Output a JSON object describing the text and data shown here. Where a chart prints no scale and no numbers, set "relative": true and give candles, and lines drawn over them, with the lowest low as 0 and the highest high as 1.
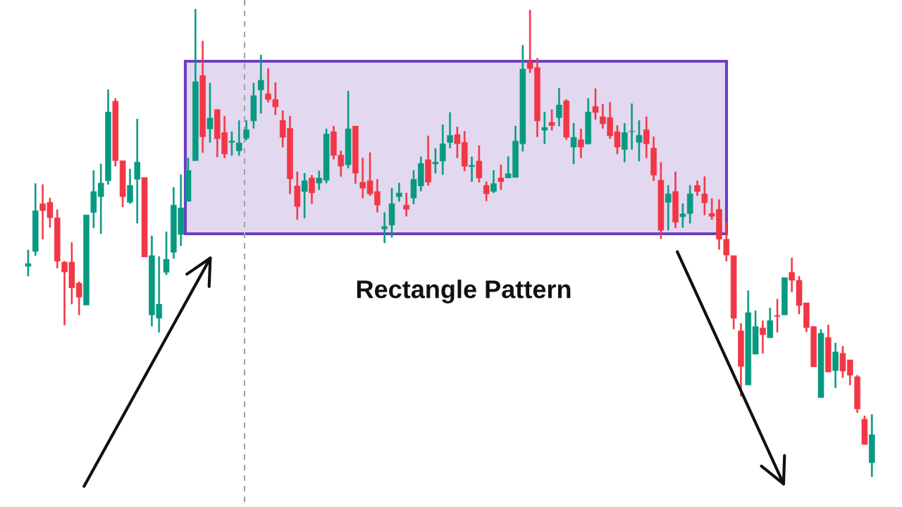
{
  "chart_data": {
    "type": "candlestick",
    "relative": true,
    "categories": [
      null,
      null,
      null,
      null,
      null,
      null,
      null,
      null,
      null,
      null,
      null,
      null,
      null,
      null,
      null,
      null,
      null,
      null,
      null,
      null,
      null,
      null,
      null,
      null,
      null,
      null,
      null,
      null,
      null,
      null,
      null,
      null,
      null,
      null,
      null,
      null,
      null,
      null,
      null,
      null,
      null,
      null,
      null,
      null,
      null,
      null,
      null,
      null,
      null,
      null,
      null,
      null,
      null,
      null,
      null,
      null,
      null,
      null,
      null,
      null,
      null,
      null,
      null,
      null,
      null,
      null,
      null,
      null,
      null,
      null,
      null,
      null,
      null,
      null,
      null,
      null,
      null,
      null,
      null,
      null,
      null,
      null,
      null,
      null,
      null,
      null,
      null,
      null,
      null,
      null,
      null,
      null,
      null,
      null,
      null,
      null,
      null,
      null,
      null,
      null,
      null,
      null,
      null,
      null,
      null,
      null,
      null,
      null,
      null,
      null,
      null,
      null,
      null,
      null,
      null,
      null,
      null
    ],
    "ohlc": [
      [
        0.45,
        0.485,
        0.429,
        0.456
      ],
      [
        0.482,
        0.627,
        0.473,
        0.569
      ],
      [
        0.584,
        0.625,
        0.508,
        0.569
      ],
      [
        0.587,
        0.596,
        0.533,
        0.554
      ],
      [
        0.554,
        0.571,
        0.446,
        0.461
      ],
      [
        0.459,
        0.461,
        0.324,
        0.438
      ],
      [
        0.459,
        0.501,
        0.369,
        0.404
      ],
      [
        0.414,
        0.417,
        0.346,
        0.384
      ],
      [
        0.367,
        0.56,
        0.367,
        0.56
      ],
      [
        0.565,
        0.655,
        0.532,
        0.61
      ],
      [
        0.599,
        0.669,
        0.52,
        0.628
      ],
      [
        0.633,
        0.828,
        0.625,
        0.78
      ],
      [
        0.803,
        0.809,
        0.664,
        0.676
      ],
      [
        0.676,
        0.676,
        0.577,
        0.599
      ],
      [
        0.587,
        0.658,
        0.584,
        0.623
      ],
      [
        0.636,
        0.765,
        0.542,
        0.673
      ],
      [
        0.64,
        0.64,
        0.47,
        0.47
      ],
      [
        0.346,
        0.515,
        0.322,
        0.473
      ],
      [
        0.339,
        0.471,
        0.309,
        0.369
      ],
      [
        0.437,
        0.524,
        0.432,
        0.465
      ],
      [
        0.48,
        0.619,
        0.467,
        0.581
      ],
      [
        0.518,
        0.646,
        0.494,
        0.575
      ],
      [
        0.589,
        0.682,
        0.589,
        0.655
      ],
      [
        0.676,
        1.0,
        0.676,
        0.845
      ],
      [
        0.858,
        0.932,
        0.693,
        0.727
      ],
      [
        0.744,
        0.842,
        0.715,
        0.767
      ],
      [
        0.785,
        0.786,
        0.684,
        0.723
      ],
      [
        0.736,
        0.771,
        0.682,
        0.69
      ],
      [
        0.715,
        0.738,
        0.687,
        0.718
      ],
      [
        0.697,
        0.762,
        0.687,
        0.714
      ],
      [
        0.724,
        0.762,
        0.72,
        0.742
      ],
      [
        0.761,
        0.842,
        0.745,
        0.815
      ],
      [
        0.827,
        0.902,
        0.777,
        0.848
      ],
      [
        0.819,
        0.873,
        0.801,
        0.807
      ],
      [
        0.807,
        0.843,
        0.774,
        0.791
      ],
      [
        0.762,
        0.783,
        0.705,
        0.726
      ],
      [
        0.745,
        0.771,
        0.605,
        0.637
      ],
      [
        0.622,
        0.652,
        0.55,
        0.578
      ],
      [
        0.61,
        0.649,
        0.553,
        0.633
      ],
      [
        0.639,
        0.645,
        0.584,
        0.607
      ],
      [
        0.628,
        0.654,
        0.614,
        0.639
      ],
      [
        0.634,
        0.744,
        0.628,
        0.733
      ],
      [
        0.738,
        0.75,
        0.679,
        0.687
      ],
      [
        0.688,
        0.697,
        0.642,
        0.664
      ],
      [
        0.667,
        0.825,
        0.66,
        0.744
      ],
      [
        0.75,
        0.75,
        0.627,
        0.649
      ],
      [
        0.63,
        0.682,
        0.596,
        0.617
      ],
      [
        0.633,
        0.693,
        0.601,
        0.605
      ],
      [
        0.61,
        0.636,
        0.566,
        0.581
      ],
      [
        0.53,
        0.565,
        0.5,
        0.535
      ],
      [
        0.538,
        0.617,
        0.512,
        0.584
      ],
      [
        0.599,
        0.628,
        0.589,
        0.607
      ],
      [
        0.581,
        0.607,
        0.557,
        0.572
      ],
      [
        0.596,
        0.655,
        0.583,
        0.636
      ],
      [
        0.622,
        0.684,
        0.611,
        0.67
      ],
      [
        0.678,
        0.729,
        0.623,
        0.63
      ],
      [
        0.669,
        0.702,
        0.649,
        0.673
      ],
      [
        0.675,
        0.753,
        0.646,
        0.712
      ],
      [
        0.715,
        0.779,
        0.703,
        0.73
      ],
      [
        0.732,
        0.748,
        0.682,
        0.712
      ],
      [
        0.715,
        0.739,
        0.654,
        0.664
      ],
      [
        0.663,
        0.684,
        0.631,
        0.666
      ],
      [
        0.675,
        0.708,
        0.63,
        0.639
      ],
      [
        0.623,
        0.631,
        0.59,
        0.605
      ],
      [
        0.61,
        0.655,
        0.607,
        0.627
      ],
      [
        0.639,
        0.667,
        0.614,
        0.631
      ],
      [
        0.639,
        0.685,
        0.639,
        0.648
      ],
      [
        0.64,
        0.75,
        0.64,
        0.718
      ],
      [
        0.712,
        0.923,
        0.696,
        0.872
      ],
      [
        0.887,
        0.998,
        0.864,
        0.873
      ],
      [
        0.875,
        0.895,
        0.727,
        0.761
      ],
      [
        0.741,
        0.78,
        0.712,
        0.747
      ],
      [
        0.758,
        0.785,
        0.741,
        0.751
      ],
      [
        0.768,
        0.831,
        0.75,
        0.795
      ],
      [
        0.804,
        0.807,
        0.721,
        0.726
      ],
      [
        0.705,
        0.756,
        0.669,
        0.726
      ],
      [
        0.721,
        0.744,
        0.682,
        0.705
      ],
      [
        0.712,
        0.809,
        0.711,
        0.78
      ],
      [
        0.792,
        0.83,
        0.764,
        0.779
      ],
      [
        0.77,
        0.797,
        0.745,
        0.755
      ],
      [
        0.768,
        0.801,
        0.723,
        0.729
      ],
      [
        0.738,
        0.751,
        0.69,
        0.705
      ],
      [
        0.7,
        0.756,
        0.673,
        0.736
      ],
      [
        0.738,
        0.798,
        0.7,
        0.739
      ],
      [
        0.715,
        0.762,
        0.675,
        0.73
      ],
      [
        0.742,
        0.77,
        0.682,
        0.712
      ],
      [
        0.703,
        0.727,
        0.633,
        0.645
      ],
      [
        0.634,
        0.672,
        0.509,
        0.527
      ],
      [
        0.587,
        0.623,
        0.527,
        0.605
      ],
      [
        0.61,
        0.652,
        0.532,
        0.544
      ],
      [
        0.556,
        0.584,
        0.533,
        0.562
      ],
      [
        0.563,
        0.623,
        0.542,
        0.605
      ],
      [
        0.623,
        0.633,
        0.601,
        0.61
      ],
      [
        0.605,
        0.642,
        0.56,
        0.586
      ],
      [
        0.563,
        0.595,
        0.55,
        0.557
      ],
      [
        0.572,
        0.593,
        0.486,
        0.508
      ],
      [
        0.508,
        0.544,
        0.461,
        0.474
      ],
      [
        0.473,
        0.473,
        0.316,
        0.339
      ],
      [
        0.312,
        0.328,
        0.172,
        0.236
      ],
      [
        0.196,
        0.398,
        0.196,
        0.351
      ],
      [
        0.262,
        0.355,
        0.262,
        0.321
      ],
      [
        0.318,
        0.334,
        0.264,
        0.304
      ],
      [
        0.297,
        0.361,
        0.297,
        0.334
      ],
      [
        0.345,
        0.38,
        0.309,
        0.343
      ],
      [
        0.346,
        0.426,
        0.346,
        0.426
      ],
      [
        0.437,
        0.468,
        0.395,
        0.42
      ],
      [
        0.42,
        0.429,
        0.348,
        0.366
      ],
      [
        0.372,
        0.372,
        0.31,
        0.319
      ],
      [
        0.321,
        0.322,
        0.235,
        0.235
      ],
      [
        0.169,
        0.315,
        0.169,
        0.307
      ],
      [
        0.298,
        0.325,
        0.224,
        0.224
      ],
      [
        0.227,
        0.286,
        0.19,
        0.267
      ],
      [
        0.264,
        0.279,
        0.212,
        0.226
      ],
      [
        0.25,
        0.25,
        0.196,
        0.217
      ],
      [
        0.214,
        0.217,
        0.137,
        0.145
      ],
      [
        0.123,
        0.13,
        0.069,
        0.069
      ],
      [
        0.03,
        0.133,
        0,
        0.09
      ]
    ],
    "colors": [
      "#089981",
      "#089981",
      "#f23645",
      "#f23645",
      "#f23645",
      "#f23645",
      "#f23645",
      "#f23645",
      "#089981",
      "#089981",
      "#089981",
      "#089981",
      "#f23645",
      "#f23645",
      "#089981",
      "#089981",
      "#f23645",
      "#089981",
      "#089981",
      "#089981",
      "#089981",
      "#089981",
      "#089981",
      "#089981",
      "#f23645",
      "#089981",
      "#f23645",
      "#f23645",
      "#089981",
      "#089981",
      "#089981",
      "#089981",
      "#089981",
      "#f23645",
      "#f23645",
      "#f23645",
      "#f23645",
      "#f23645",
      "#089981",
      "#f23645",
      "#089981",
      "#089981",
      "#f23645",
      "#f23645",
      "#089981",
      "#f23645",
      "#f23645",
      "#f23645",
      "#f23645",
      "#089981",
      "#089981",
      "#089981",
      "#f23645",
      "#089981",
      "#089981",
      "#f23645",
      "#089981",
      "#089981",
      "#089981",
      "#f23645",
      "#f23645",
      "#089981",
      "#f23645",
      "#f23645",
      "#089981",
      "#f23645",
      "#089981",
      "#089981",
      "#089981",
      "#f23645",
      "#f23645",
      "#089981",
      "#f23645",
      "#089981",
      "#f23645",
      "#089981",
      "#f23645",
      "#089981",
      "#f23645",
      "#f23645",
      "#f23645",
      "#f23645",
      "#089981",
      "#089981",
      "#089981",
      "#f23645",
      "#f23645",
      "#f23645",
      "#089981",
      "#f23645",
      "#089981",
      "#089981",
      "#f23645",
      "#f23645",
      "#f23645",
      "#f23645",
      "#f23645",
      "#f23645",
      "#f23645",
      "#089981",
      "#089981",
      "#f23645",
      "#089981",
      "#f23645",
      "#089981",
      "#f23645",
      "#f23645",
      "#f23645",
      "#f23645",
      "#089981",
      "#f23645",
      "#089981",
      "#f23645",
      "#f23645",
      "#f23645",
      "#f23645",
      "#089981"
    ],
    "annotations": [
      "Rectangle Pattern"
    ]
  }
}
